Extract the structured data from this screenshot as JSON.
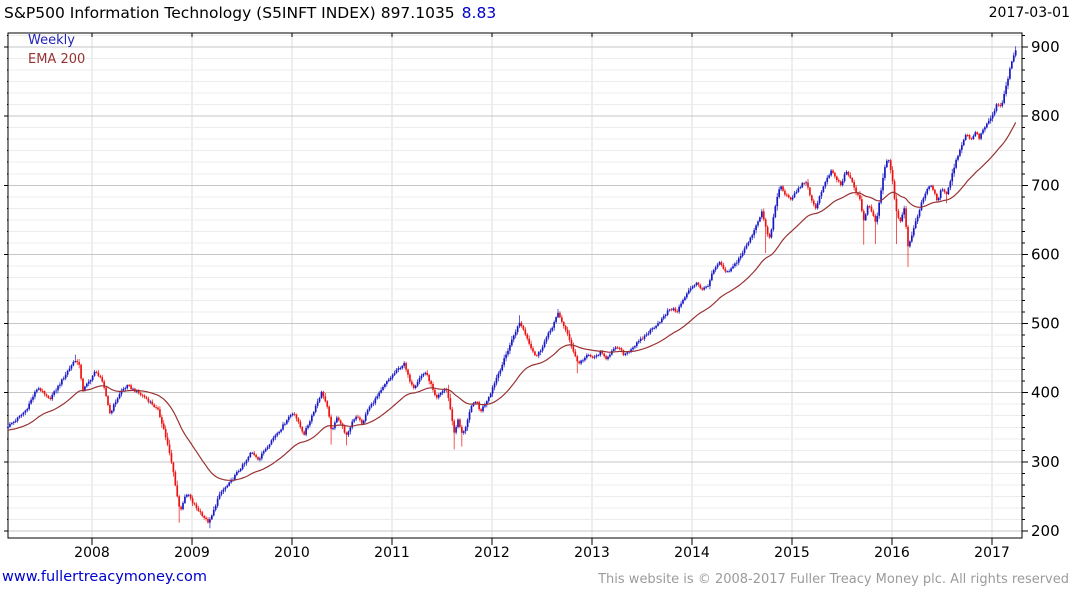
{
  "header": {
    "title": "S&P500 Information Technology (S5INFT INDEX)",
    "last_price": "897.1035",
    "change": "8.83",
    "date": "2017-03-01"
  },
  "legend": {
    "timeframe": "Weekly",
    "overlay": "EMA 200"
  },
  "footer": {
    "site_link": "www.fullertreacymoney.com",
    "copyright": "This website is © 2008-2017 Fuller Treacy Money plc. All rights reserved"
  },
  "chart_data": {
    "type": "candlestick",
    "interval": "weekly",
    "title": "S&P500 Information Technology (S5INFT INDEX)",
    "overlay": "EMA 200",
    "ema_period_weeks": 40,
    "x_ticks": [
      2008,
      2009,
      2010,
      2011,
      2012,
      2013,
      2014,
      2015,
      2016,
      2017
    ],
    "y_ticks": [
      900,
      800,
      700,
      600,
      500,
      400,
      300,
      200
    ],
    "y_minor_per_major": 6,
    "ylim": [
      190,
      920
    ],
    "xlim_years": [
      2007.16,
      2017.25
    ],
    "grid": true,
    "legend_position": "top-left",
    "colors": {
      "up": "#1717c4",
      "down": "#ee1111",
      "ema": "#993333",
      "change_text": "#0000cc",
      "timeframe_text": "#2222bb",
      "link_text": "#0000cc",
      "copyright_text": "#9b9b9b",
      "grid_major": "#c6c6c6",
      "grid_minor": "#ececec",
      "grid_year": "#dcdcdc",
      "axis": "#000000"
    },
    "anchors": [
      [
        2007.16,
        352
      ],
      [
        2007.22,
        358
      ],
      [
        2007.28,
        366
      ],
      [
        2007.34,
        375
      ],
      [
        2007.4,
        392
      ],
      [
        2007.46,
        408
      ],
      [
        2007.52,
        398
      ],
      [
        2007.57,
        390
      ],
      [
        2007.63,
        402
      ],
      [
        2007.7,
        418
      ],
      [
        2007.76,
        432
      ],
      [
        2007.83,
        448
      ],
      [
        2007.87,
        440
      ],
      [
        2007.91,
        404
      ],
      [
        2007.97,
        416
      ],
      [
        2008.03,
        430
      ],
      [
        2008.08,
        424
      ],
      [
        2008.13,
        402
      ],
      [
        2008.18,
        370
      ],
      [
        2008.24,
        388
      ],
      [
        2008.3,
        404
      ],
      [
        2008.36,
        410
      ],
      [
        2008.42,
        404
      ],
      [
        2008.48,
        398
      ],
      [
        2008.54,
        392
      ],
      [
        2008.6,
        384
      ],
      [
        2008.66,
        374
      ],
      [
        2008.71,
        352
      ],
      [
        2008.76,
        322
      ],
      [
        2008.81,
        288
      ],
      [
        2008.85,
        252
      ],
      [
        2008.88,
        228
      ],
      [
        2008.92,
        246
      ],
      [
        2008.96,
        254
      ],
      [
        2009.0,
        242
      ],
      [
        2009.05,
        232
      ],
      [
        2009.1,
        224
      ],
      [
        2009.14,
        216
      ],
      [
        2009.17,
        212
      ],
      [
        2009.21,
        226
      ],
      [
        2009.25,
        244
      ],
      [
        2009.3,
        258
      ],
      [
        2009.36,
        266
      ],
      [
        2009.42,
        278
      ],
      [
        2009.48,
        290
      ],
      [
        2009.54,
        300
      ],
      [
        2009.59,
        314
      ],
      [
        2009.63,
        310
      ],
      [
        2009.67,
        303
      ],
      [
        2009.72,
        316
      ],
      [
        2009.78,
        328
      ],
      [
        2009.84,
        340
      ],
      [
        2009.9,
        350
      ],
      [
        2009.96,
        364
      ],
      [
        2010.02,
        372
      ],
      [
        2010.07,
        354
      ],
      [
        2010.12,
        340
      ],
      [
        2010.18,
        360
      ],
      [
        2010.24,
        382
      ],
      [
        2010.3,
        402
      ],
      [
        2010.35,
        380
      ],
      [
        2010.4,
        342
      ],
      [
        2010.45,
        366
      ],
      [
        2010.5,
        352
      ],
      [
        2010.55,
        336
      ],
      [
        2010.6,
        358
      ],
      [
        2010.65,
        368
      ],
      [
        2010.7,
        354
      ],
      [
        2010.76,
        376
      ],
      [
        2010.82,
        388
      ],
      [
        2010.88,
        400
      ],
      [
        2010.94,
        414
      ],
      [
        2011.0,
        424
      ],
      [
        2011.06,
        434
      ],
      [
        2011.12,
        442
      ],
      [
        2011.17,
        420
      ],
      [
        2011.22,
        408
      ],
      [
        2011.28,
        422
      ],
      [
        2011.33,
        430
      ],
      [
        2011.38,
        416
      ],
      [
        2011.44,
        390
      ],
      [
        2011.49,
        400
      ],
      [
        2011.54,
        408
      ],
      [
        2011.58,
        380
      ],
      [
        2011.62,
        342
      ],
      [
        2011.66,
        360
      ],
      [
        2011.7,
        340
      ],
      [
        2011.74,
        352
      ],
      [
        2011.79,
        378
      ],
      [
        2011.84,
        390
      ],
      [
        2011.88,
        372
      ],
      [
        2011.93,
        384
      ],
      [
        2011.98,
        398
      ],
      [
        2012.04,
        420
      ],
      [
        2012.1,
        440
      ],
      [
        2012.16,
        462
      ],
      [
        2012.22,
        484
      ],
      [
        2012.28,
        502
      ],
      [
        2012.33,
        486
      ],
      [
        2012.39,
        466
      ],
      [
        2012.44,
        452
      ],
      [
        2012.48,
        460
      ],
      [
        2012.54,
        478
      ],
      [
        2012.6,
        495
      ],
      [
        2012.66,
        514
      ],
      [
        2012.71,
        500
      ],
      [
        2012.76,
        482
      ],
      [
        2012.81,
        462
      ],
      [
        2012.86,
        442
      ],
      [
        2012.91,
        448
      ],
      [
        2012.96,
        454
      ],
      [
        2013.02,
        450
      ],
      [
        2013.08,
        458
      ],
      [
        2013.14,
        450
      ],
      [
        2013.2,
        460
      ],
      [
        2013.26,
        466
      ],
      [
        2013.32,
        455
      ],
      [
        2013.38,
        462
      ],
      [
        2013.44,
        470
      ],
      [
        2013.5,
        478
      ],
      [
        2013.57,
        488
      ],
      [
        2013.64,
        498
      ],
      [
        2013.71,
        508
      ],
      [
        2013.78,
        522
      ],
      [
        2013.85,
        518
      ],
      [
        2013.92,
        536
      ],
      [
        2013.99,
        552
      ],
      [
        2014.05,
        560
      ],
      [
        2014.1,
        548
      ],
      [
        2014.16,
        556
      ],
      [
        2014.22,
        578
      ],
      [
        2014.28,
        588
      ],
      [
        2014.34,
        572
      ],
      [
        2014.4,
        580
      ],
      [
        2014.46,
        592
      ],
      [
        2014.52,
        606
      ],
      [
        2014.58,
        622
      ],
      [
        2014.64,
        642
      ],
      [
        2014.7,
        662
      ],
      [
        2014.74,
        636
      ],
      [
        2014.78,
        622
      ],
      [
        2014.83,
        668
      ],
      [
        2014.88,
        700
      ],
      [
        2014.93,
        688
      ],
      [
        2014.98,
        678
      ],
      [
        2015.04,
        690
      ],
      [
        2015.09,
        700
      ],
      [
        2015.14,
        706
      ],
      [
        2015.19,
        678
      ],
      [
        2015.24,
        668
      ],
      [
        2015.29,
        690
      ],
      [
        2015.34,
        706
      ],
      [
        2015.39,
        720
      ],
      [
        2015.44,
        710
      ],
      [
        2015.49,
        700
      ],
      [
        2015.54,
        720
      ],
      [
        2015.59,
        708
      ],
      [
        2015.63,
        694
      ],
      [
        2015.68,
        678
      ],
      [
        2015.72,
        648
      ],
      [
        2015.76,
        672
      ],
      [
        2015.8,
        660
      ],
      [
        2015.84,
        646
      ],
      [
        2015.88,
        682
      ],
      [
        2015.92,
        722
      ],
      [
        2015.96,
        742
      ],
      [
        2016.0,
        714
      ],
      [
        2016.04,
        664
      ],
      [
        2016.08,
        648
      ],
      [
        2016.12,
        668
      ],
      [
        2016.16,
        610
      ],
      [
        2016.2,
        630
      ],
      [
        2016.25,
        652
      ],
      [
        2016.3,
        678
      ],
      [
        2016.35,
        694
      ],
      [
        2016.4,
        700
      ],
      [
        2016.45,
        676
      ],
      [
        2016.5,
        696
      ],
      [
        2016.55,
        688
      ],
      [
        2016.6,
        716
      ],
      [
        2016.65,
        740
      ],
      [
        2016.7,
        760
      ],
      [
        2016.75,
        776
      ],
      [
        2016.79,
        764
      ],
      [
        2016.83,
        778
      ],
      [
        2016.87,
        768
      ],
      [
        2016.91,
        780
      ],
      [
        2016.96,
        790
      ],
      [
        2017.01,
        802
      ],
      [
        2017.05,
        818
      ],
      [
        2017.09,
        812
      ],
      [
        2017.13,
        836
      ],
      [
        2017.17,
        862
      ],
      [
        2017.21,
        884
      ],
      [
        2017.24,
        897
      ]
    ],
    "spikes": [
      {
        "t": 2007.83,
        "high": 455
      },
      {
        "t": 2008.88,
        "low": 212
      },
      {
        "t": 2009.17,
        "low": 204
      },
      {
        "t": 2010.4,
        "low": 325
      },
      {
        "t": 2010.55,
        "low": 324
      },
      {
        "t": 2011.62,
        "low": 318
      },
      {
        "t": 2011.7,
        "low": 322
      },
      {
        "t": 2012.28,
        "high": 512
      },
      {
        "t": 2012.66,
        "high": 521
      },
      {
        "t": 2012.86,
        "low": 428
      },
      {
        "t": 2014.74,
        "low": 602
      },
      {
        "t": 2015.72,
        "low": 614
      },
      {
        "t": 2015.84,
        "low": 615
      },
      {
        "t": 2016.04,
        "low": 615
      },
      {
        "t": 2016.16,
        "low": 582
      },
      {
        "t": 2016.55,
        "low": 674
      },
      {
        "t": 2017.24,
        "high": 901
      }
    ]
  }
}
